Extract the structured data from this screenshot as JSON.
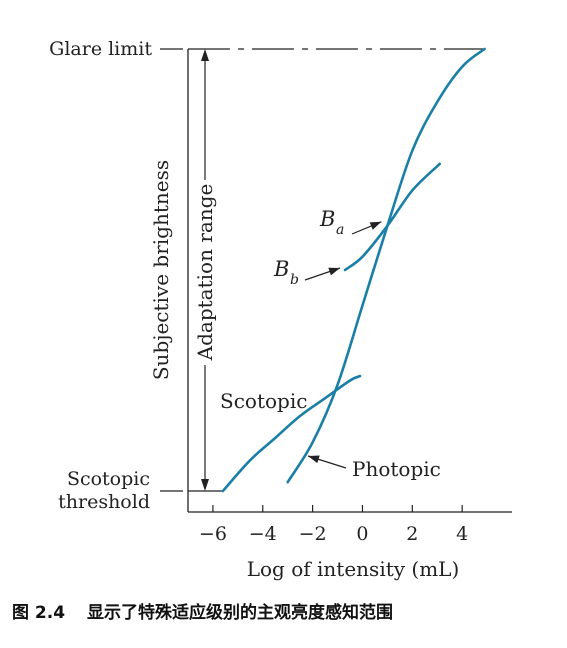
{
  "chart_data": {
    "type": "line",
    "xlabel": "Log of intensity (mL)",
    "ylabel": "Subjective brightness",
    "x_ticks": [
      -6,
      -4,
      -2,
      0,
      2,
      4
    ],
    "x_tick_labels": [
      "−6",
      "−4",
      "−2",
      "0",
      "2",
      "4"
    ],
    "xlim": [
      -7,
      6
    ],
    "ylim": [
      0,
      1
    ],
    "grid": false,
    "levels": {
      "glare_limit": {
        "label": "Glare limit",
        "y": 1
      },
      "scotopic_threshold": {
        "label_line1": "Scotopic",
        "label_line2": "threshold",
        "y": 0
      }
    },
    "range_annotation": {
      "label": "Adaptation range"
    },
    "curves": [
      {
        "label": "Scotopic",
        "points": [
          [
            -5.6,
            0.0
          ],
          [
            -4.5,
            0.07
          ],
          [
            -3.5,
            0.12
          ],
          [
            -2.5,
            0.17
          ],
          [
            -1.5,
            0.21
          ],
          [
            -0.5,
            0.25
          ],
          [
            -0.1,
            0.26
          ]
        ]
      },
      {
        "label": "Photopic",
        "points": [
          [
            -3.0,
            0.02
          ],
          [
            -2.0,
            0.11
          ],
          [
            -1.0,
            0.24
          ],
          [
            0.0,
            0.42
          ],
          [
            1.0,
            0.6
          ],
          [
            2.0,
            0.77
          ],
          [
            3.0,
            0.88
          ],
          [
            4.0,
            0.96
          ],
          [
            4.9,
            1.0
          ]
        ]
      },
      {
        "label": "B",
        "label_subscript": "b",
        "points": [
          [
            -0.7,
            0.5
          ],
          [
            0.0,
            0.53
          ],
          [
            1.0,
            0.6
          ],
          [
            2.0,
            0.68
          ],
          [
            3.1,
            0.74
          ]
        ]
      }
    ],
    "points_of_interest": [
      {
        "label": "B",
        "subscript": "a",
        "x": 1.0,
        "y": 0.6
      }
    ]
  },
  "caption": {
    "number": "图 2.4",
    "text": "显示了特殊适应级别的主观亮度感知范围"
  }
}
